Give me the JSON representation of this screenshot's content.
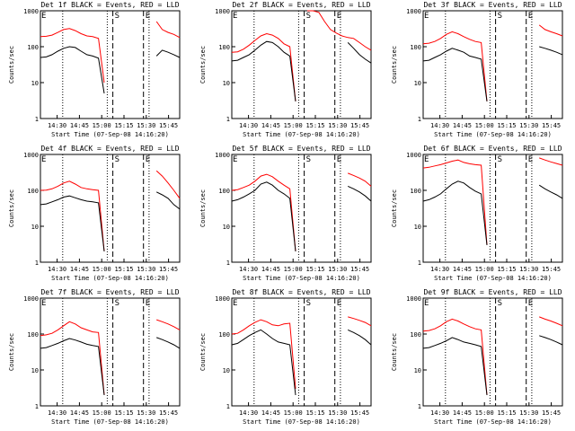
{
  "chart_data": {
    "type": "line",
    "panels": [
      {
        "title": "Det 1f BLACK = Events, RED = LLD",
        "black": [
          50,
          52,
          60,
          75,
          90,
          100,
          95,
          75,
          60,
          55,
          48,
          5,
          null,
          null,
          null,
          null,
          null,
          null,
          null,
          null,
          55,
          80,
          70,
          60,
          50
        ],
        "red": [
          190,
          195,
          210,
          250,
          300,
          320,
          280,
          230,
          200,
          190,
          170,
          10,
          null,
          2000,
          null,
          null,
          null,
          null,
          null,
          null,
          500,
          300,
          250,
          220,
          180
        ]
      },
      {
        "title": "Det 2f BLACK = Events, RED = LLD",
        "black": [
          40,
          42,
          50,
          60,
          80,
          110,
          140,
          130,
          100,
          70,
          55,
          3,
          null,
          null,
          null,
          null,
          null,
          null,
          null,
          null,
          130,
          90,
          60,
          45,
          35
        ],
        "red": [
          70,
          72,
          85,
          110,
          150,
          200,
          230,
          210,
          170,
          120,
          100,
          3,
          null,
          2000,
          1500,
          900,
          500,
          300,
          240,
          200,
          180,
          170,
          130,
          100,
          80
        ]
      },
      {
        "title": "Det 3f BLACK = Events, RED = LLD",
        "black": [
          40,
          42,
          50,
          60,
          75,
          90,
          80,
          70,
          55,
          50,
          45,
          3,
          null,
          null,
          null,
          null,
          null,
          null,
          null,
          null,
          100,
          90,
          80,
          70,
          60
        ],
        "red": [
          120,
          125,
          140,
          170,
          220,
          260,
          230,
          190,
          160,
          140,
          130,
          3,
          null,
          2000,
          null,
          null,
          null,
          null,
          null,
          null,
          400,
          300,
          260,
          230,
          200
        ]
      },
      {
        "title": "Det 4f BLACK = Events, RED = LLD",
        "black": [
          40,
          42,
          48,
          55,
          65,
          70,
          62,
          55,
          50,
          48,
          45,
          2,
          null,
          null,
          null,
          null,
          null,
          null,
          null,
          null,
          90,
          75,
          60,
          40,
          30
        ],
        "red": [
          100,
          102,
          110,
          130,
          160,
          180,
          150,
          120,
          110,
          105,
          100,
          2,
          null,
          2000,
          null,
          null,
          null,
          null,
          null,
          null,
          350,
          250,
          160,
          100,
          60
        ]
      },
      {
        "title": "Det 5f BLACK = Events, RED = LLD",
        "black": [
          50,
          55,
          65,
          80,
          100,
          150,
          170,
          140,
          100,
          80,
          60,
          2,
          null,
          null,
          null,
          null,
          null,
          null,
          null,
          null,
          130,
          110,
          90,
          70,
          50
        ],
        "red": [
          100,
          105,
          120,
          140,
          180,
          250,
          280,
          240,
          180,
          140,
          110,
          2,
          null,
          2000,
          null,
          null,
          null,
          null,
          null,
          null,
          300,
          260,
          220,
          180,
          130
        ]
      },
      {
        "title": "Det 6f BLACK = Events, RED = LLD",
        "black": [
          50,
          55,
          65,
          80,
          110,
          150,
          180,
          160,
          120,
          95,
          80,
          3,
          null,
          null,
          null,
          null,
          null,
          null,
          null,
          null,
          140,
          110,
          90,
          75,
          60
        ],
        "red": [
          420,
          440,
          480,
          520,
          580,
          650,
          700,
          600,
          550,
          520,
          500,
          3,
          null,
          1500,
          null,
          null,
          null,
          null,
          null,
          null,
          800,
          700,
          620,
          560,
          500
        ]
      },
      {
        "title": "Det 7f BLACK = Events, RED = LLD",
        "black": [
          40,
          42,
          48,
          55,
          65,
          75,
          68,
          60,
          52,
          48,
          45,
          2,
          null,
          null,
          null,
          null,
          null,
          null,
          null,
          null,
          80,
          70,
          60,
          50,
          40
        ],
        "red": [
          90,
          95,
          105,
          130,
          170,
          220,
          190,
          150,
          130,
          115,
          110,
          2,
          null,
          2000,
          null,
          null,
          null,
          null,
          null,
          null,
          250,
          220,
          190,
          160,
          130
        ]
      },
      {
        "title": "Det 8f BLACK = Events, RED = LLD",
        "black": [
          50,
          55,
          70,
          90,
          110,
          130,
          100,
          75,
          60,
          55,
          50,
          2,
          null,
          null,
          null,
          null,
          null,
          null,
          null,
          null,
          130,
          110,
          90,
          70,
          50
        ],
        "red": [
          100,
          105,
          130,
          170,
          210,
          250,
          220,
          180,
          170,
          190,
          200,
          3,
          null,
          2000,
          null,
          null,
          null,
          null,
          null,
          null,
          300,
          270,
          240,
          210,
          170
        ]
      },
      {
        "title": "Det 9f BLACK = Events, RED = LLD",
        "black": [
          40,
          42,
          48,
          55,
          65,
          80,
          70,
          60,
          55,
          50,
          45,
          2,
          null,
          null,
          null,
          null,
          null,
          null,
          null,
          null,
          90,
          80,
          70,
          60,
          50
        ],
        "red": [
          120,
          125,
          140,
          170,
          220,
          260,
          230,
          190,
          160,
          140,
          130,
          2,
          null,
          2000,
          null,
          null,
          null,
          null,
          null,
          null,
          300,
          260,
          230,
          200,
          170
        ]
      }
    ],
    "x": [
      "14:26",
      "14:28",
      "14:30",
      "14:32",
      "14:34",
      "14:36",
      "14:38",
      "14:40",
      "14:42",
      "14:44",
      "14:46",
      "14:48",
      "14:50",
      "14:52",
      "14:54",
      "14:56",
      "14:58",
      "15:00",
      "15:02",
      "15:04",
      "15:06",
      "15:08",
      "15:10",
      "15:12",
      "15:14"
    ],
    "x_tick_labels": [
      "14:30",
      "14:45",
      "15:00",
      "15:15",
      "15:30",
      "15:45"
    ],
    "y_tick_labels": [
      "1",
      "10",
      "100",
      "1000"
    ],
    "ylim": [
      1,
      1000
    ],
    "y_scale": "log",
    "xlabel": "Start Time (07-Sep-08 14:16:20)",
    "ylabel": "Counts/sec",
    "markers": {
      "start_label": "S",
      "end_label": "E",
      "left_label": "E"
    },
    "colors": {
      "events": "#000000",
      "lld": "#ff0000"
    }
  }
}
